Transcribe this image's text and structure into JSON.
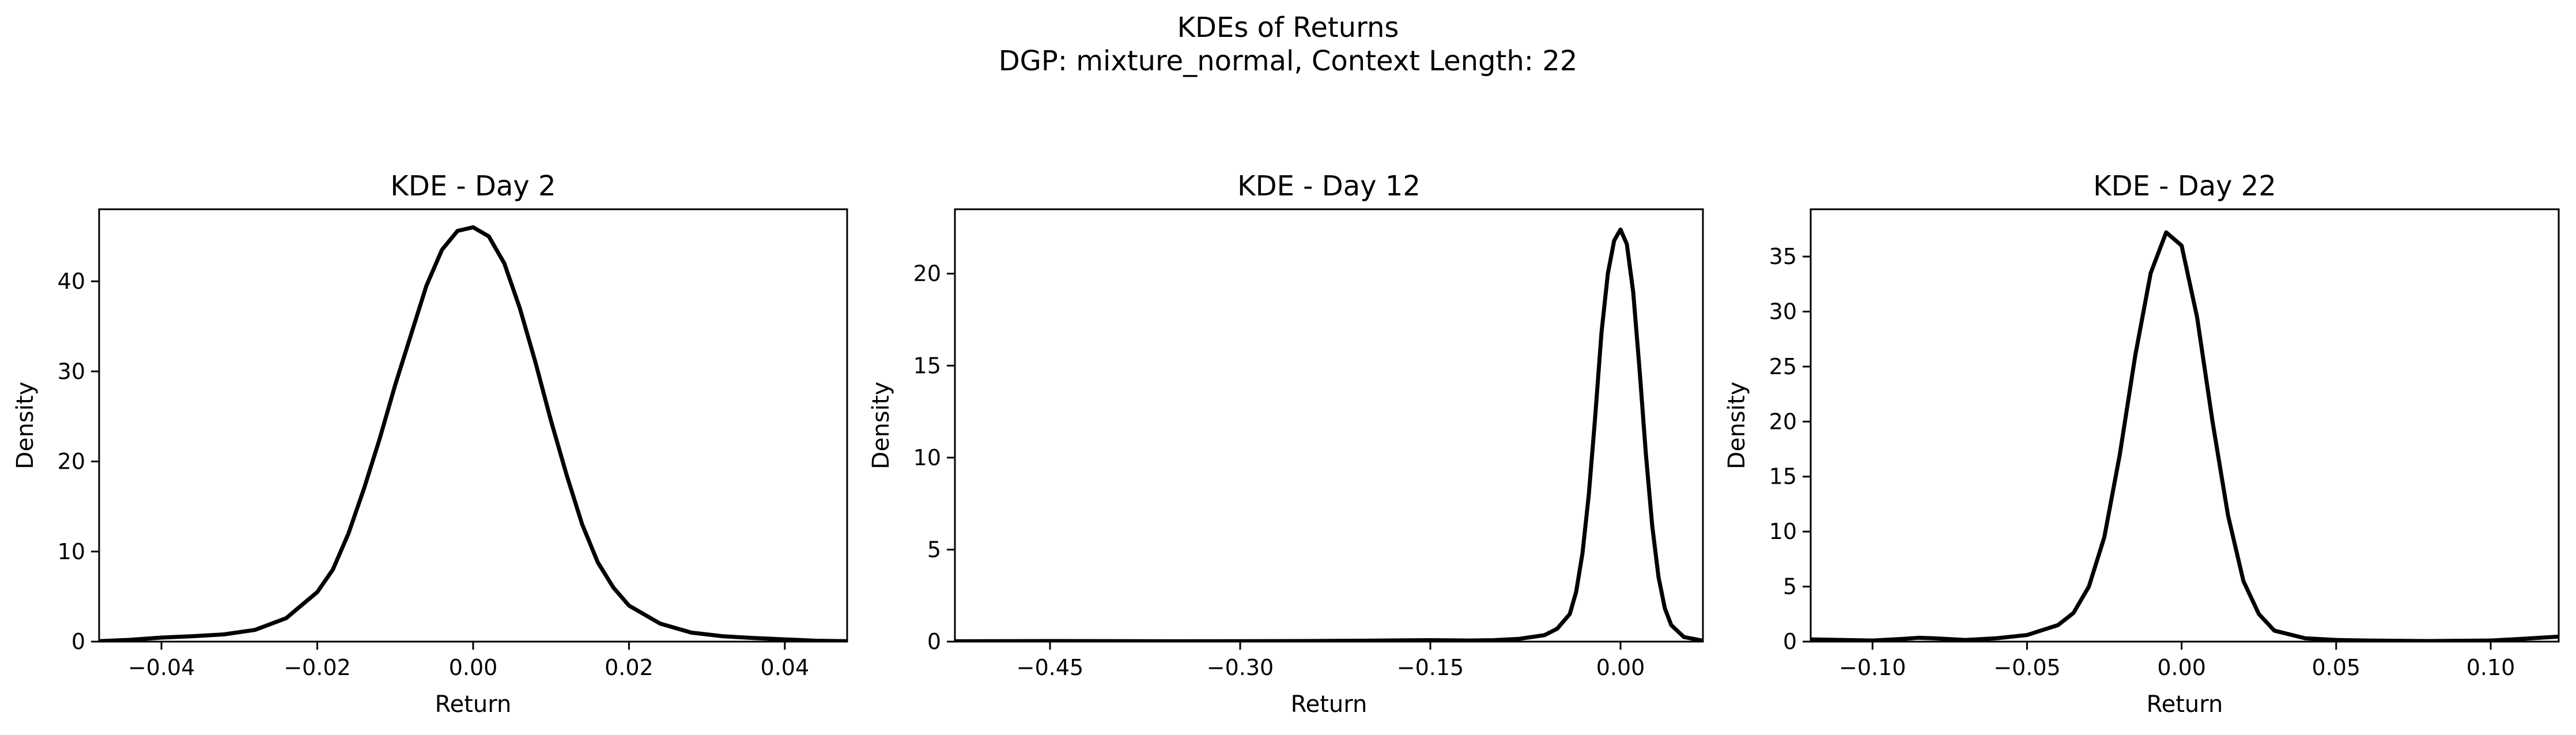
{
  "figure": {
    "suptitle_line1": "KDEs of Returns",
    "suptitle_line2": "DGP: mixture_normal, Context Length: 22"
  },
  "chart_data": [
    {
      "type": "line",
      "title": "KDE - Day 2",
      "xlabel": "Return",
      "ylabel": "Density",
      "xlim": [
        -0.048,
        0.048
      ],
      "ylim": [
        0,
        48
      ],
      "xticks": [
        -0.04,
        -0.02,
        0.0,
        0.02,
        0.04
      ],
      "xtick_labels": [
        "−0.04",
        "−0.02",
        "0.00",
        "0.02",
        "0.04"
      ],
      "yticks": [
        0,
        10,
        20,
        30,
        40
      ],
      "ytick_labels": [
        "0",
        "10",
        "20",
        "30",
        "40"
      ],
      "grid": false,
      "series": [
        {
          "color": "#000000",
          "x": [
            -0.048,
            -0.044,
            -0.04,
            -0.036,
            -0.032,
            -0.028,
            -0.024,
            -0.02,
            -0.018,
            -0.016,
            -0.014,
            -0.012,
            -0.01,
            -0.008,
            -0.006,
            -0.004,
            -0.002,
            0.0,
            0.002,
            0.004,
            0.006,
            0.008,
            0.01,
            0.012,
            0.014,
            0.016,
            0.018,
            0.02,
            0.024,
            0.028,
            0.032,
            0.036,
            0.04,
            0.044,
            0.048
          ],
          "y": [
            0.05,
            0.2,
            0.45,
            0.6,
            0.8,
            1.3,
            2.6,
            5.5,
            8.0,
            12.0,
            17.0,
            22.5,
            28.5,
            34.0,
            39.5,
            43.5,
            45.6,
            46.0,
            45.0,
            42.0,
            37.0,
            31.0,
            24.5,
            18.5,
            13.0,
            8.8,
            6.0,
            4.0,
            2.0,
            1.0,
            0.6,
            0.4,
            0.25,
            0.1,
            0.05
          ]
        }
      ]
    },
    {
      "type": "line",
      "title": "KDE - Day 12",
      "xlabel": "Return",
      "ylabel": "Density",
      "xlim": [
        -0.525,
        0.065
      ],
      "ylim": [
        0,
        23.5
      ],
      "xticks": [
        -0.45,
        -0.3,
        -0.15,
        0.0
      ],
      "xtick_labels": [
        "−0.45",
        "−0.30",
        "−0.15",
        "0.00"
      ],
      "yticks": [
        0,
        5,
        10,
        15,
        20
      ],
      "ytick_labels": [
        "0",
        "5",
        "10",
        "15",
        "20"
      ],
      "grid": false,
      "series": [
        {
          "color": "#000000",
          "x": [
            -0.525,
            -0.45,
            -0.35,
            -0.25,
            -0.2,
            -0.15,
            -0.12,
            -0.1,
            -0.08,
            -0.06,
            -0.05,
            -0.04,
            -0.035,
            -0.03,
            -0.025,
            -0.02,
            -0.015,
            -0.01,
            -0.005,
            0.0,
            0.005,
            0.01,
            0.015,
            0.02,
            0.025,
            0.03,
            0.035,
            0.04,
            0.05,
            0.065
          ],
          "y": [
            0.02,
            0.03,
            0.02,
            0.03,
            0.05,
            0.08,
            0.06,
            0.08,
            0.15,
            0.35,
            0.7,
            1.5,
            2.7,
            4.8,
            8.0,
            12.2,
            16.8,
            20.0,
            21.8,
            22.4,
            21.6,
            19.0,
            14.8,
            10.2,
            6.3,
            3.5,
            1.8,
            0.9,
            0.25,
            0.05
          ]
        }
      ]
    },
    {
      "type": "line",
      "title": "KDE - Day 22",
      "xlabel": "Return",
      "ylabel": "Density",
      "xlim": [
        -0.12,
        0.122
      ],
      "ylim": [
        0,
        39.3
      ],
      "xticks": [
        -0.1,
        -0.05,
        0.0,
        0.05,
        0.1
      ],
      "xtick_labels": [
        "−0.10",
        "−0.05",
        "0.00",
        "0.05",
        "0.10"
      ],
      "yticks": [
        0,
        5,
        10,
        15,
        20,
        25,
        30,
        35
      ],
      "ytick_labels": [
        "0",
        "5",
        "10",
        "15",
        "20",
        "25",
        "30",
        "35"
      ],
      "grid": false,
      "series": [
        {
          "color": "#000000",
          "x": [
            -0.12,
            -0.11,
            -0.1,
            -0.09,
            -0.085,
            -0.08,
            -0.07,
            -0.06,
            -0.05,
            -0.04,
            -0.035,
            -0.03,
            -0.025,
            -0.02,
            -0.015,
            -0.01,
            -0.005,
            0.0,
            0.005,
            0.01,
            0.015,
            0.02,
            0.025,
            0.03,
            0.04,
            0.05,
            0.06,
            0.08,
            0.1,
            0.11,
            0.122
          ],
          "y": [
            0.2,
            0.15,
            0.1,
            0.25,
            0.35,
            0.3,
            0.15,
            0.3,
            0.6,
            1.5,
            2.6,
            5.0,
            9.5,
            17.0,
            26.0,
            33.5,
            37.2,
            36.0,
            29.5,
            20.0,
            11.5,
            5.5,
            2.5,
            1.0,
            0.3,
            0.15,
            0.1,
            0.05,
            0.1,
            0.25,
            0.45
          ]
        }
      ]
    }
  ]
}
